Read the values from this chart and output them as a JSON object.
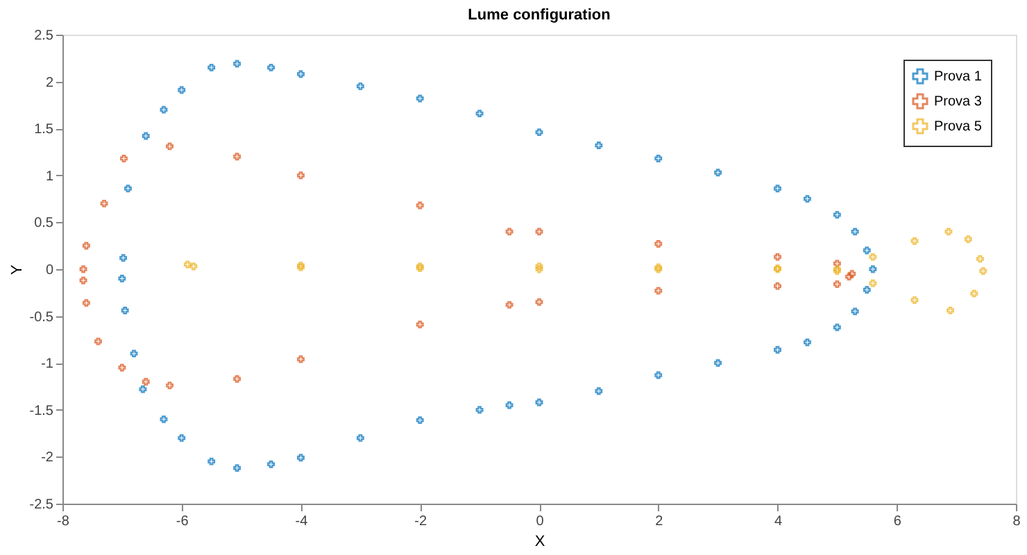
{
  "chart_data": {
    "type": "scatter",
    "title": "Lume configuration",
    "xlabel": "X",
    "ylabel": "Y",
    "xlim": [
      -8,
      8
    ],
    "xticks": [
      -8,
      -6,
      -4,
      -2,
      0,
      2,
      4,
      6,
      8
    ],
    "ylim": [
      -2.5,
      2.5
    ],
    "yticks": [
      -2.5,
      -2,
      -1.5,
      -1,
      -0.5,
      0,
      0.5,
      1,
      1.5,
      2,
      2.5
    ],
    "grid": false,
    "legend": "top right",
    "marker": "cross",
    "series": [
      {
        "name": "Prova 1",
        "color": "#0072bd",
        "x": [
          5.6,
          5.5,
          5.3,
          5,
          4.5,
          4,
          3,
          2,
          1,
          0,
          -1,
          -2,
          -3,
          -4,
          -4.5,
          -5.07,
          -5.5,
          -6,
          -6.3,
          -6.6,
          -6.9,
          -6.98,
          -7,
          -6.95,
          -6.8,
          -6.65,
          -6.3,
          -6,
          -5.5,
          -5.07,
          -4.5,
          -4,
          -3,
          -2,
          -1,
          -0.5,
          0,
          1,
          2,
          3,
          4,
          4.5,
          5,
          5.3,
          5.5
        ],
        "values": [
          0,
          0.2,
          0.4,
          0.58,
          0.75,
          0.86,
          1.03,
          1.18,
          1.32,
          1.46,
          1.66,
          1.82,
          1.95,
          2.08,
          2.15,
          2.19,
          2.15,
          1.91,
          1.7,
          1.42,
          0.86,
          0.12,
          -0.1,
          -0.44,
          -0.9,
          -1.28,
          -1.6,
          -1.8,
          -2.05,
          -2.12,
          -2.08,
          -2.01,
          -1.8,
          -1.61,
          -1.5,
          -1.45,
          -1.42,
          -1.3,
          -1.13,
          -1.0,
          -0.86,
          -0.78,
          -0.62,
          -0.45,
          -0.22
        ]
      },
      {
        "name": "Prova 3",
        "color": "#d95319",
        "x": [
          5.25,
          5,
          4,
          2,
          0,
          -0.5,
          -2,
          -4,
          -5.07,
          -6.2,
          -6.97,
          -7.3,
          -7.6,
          -7.65,
          -7.65,
          -7.6,
          -7.4,
          -7.0,
          -6.6,
          -6.2,
          -5.07,
          -4,
          -2,
          -0.5,
          0,
          2,
          4,
          5,
          5.2
        ],
        "values": [
          -0.05,
          0.06,
          0.13,
          0.27,
          0.4,
          0.4,
          0.68,
          1.0,
          1.2,
          1.31,
          1.18,
          0.7,
          0.25,
          0,
          -0.12,
          -0.36,
          -0.77,
          -1.05,
          -1.2,
          -1.24,
          -1.17,
          -0.96,
          -0.59,
          -0.38,
          -0.35,
          -0.23,
          -0.18,
          -0.16,
          -0.08
        ]
      },
      {
        "name": "Prova 5",
        "color": "#edb120",
        "x": [
          -5.9,
          -4,
          -2,
          0,
          2,
          4,
          5,
          5.6,
          6.3,
          6.87,
          7.2,
          7.4,
          7.45,
          7.3,
          6.9,
          6.3,
          5.6,
          5,
          4,
          2,
          0,
          -2,
          -4,
          -5.8
        ],
        "values": [
          0.05,
          0.04,
          0.03,
          0.03,
          0.02,
          0.01,
          0,
          0.13,
          0.3,
          0.4,
          0.32,
          0.11,
          -0.02,
          -0.26,
          -0.44,
          -0.33,
          -0.15,
          -0.02,
          0,
          0,
          0,
          0.01,
          0.02,
          0.03
        ]
      }
    ]
  }
}
